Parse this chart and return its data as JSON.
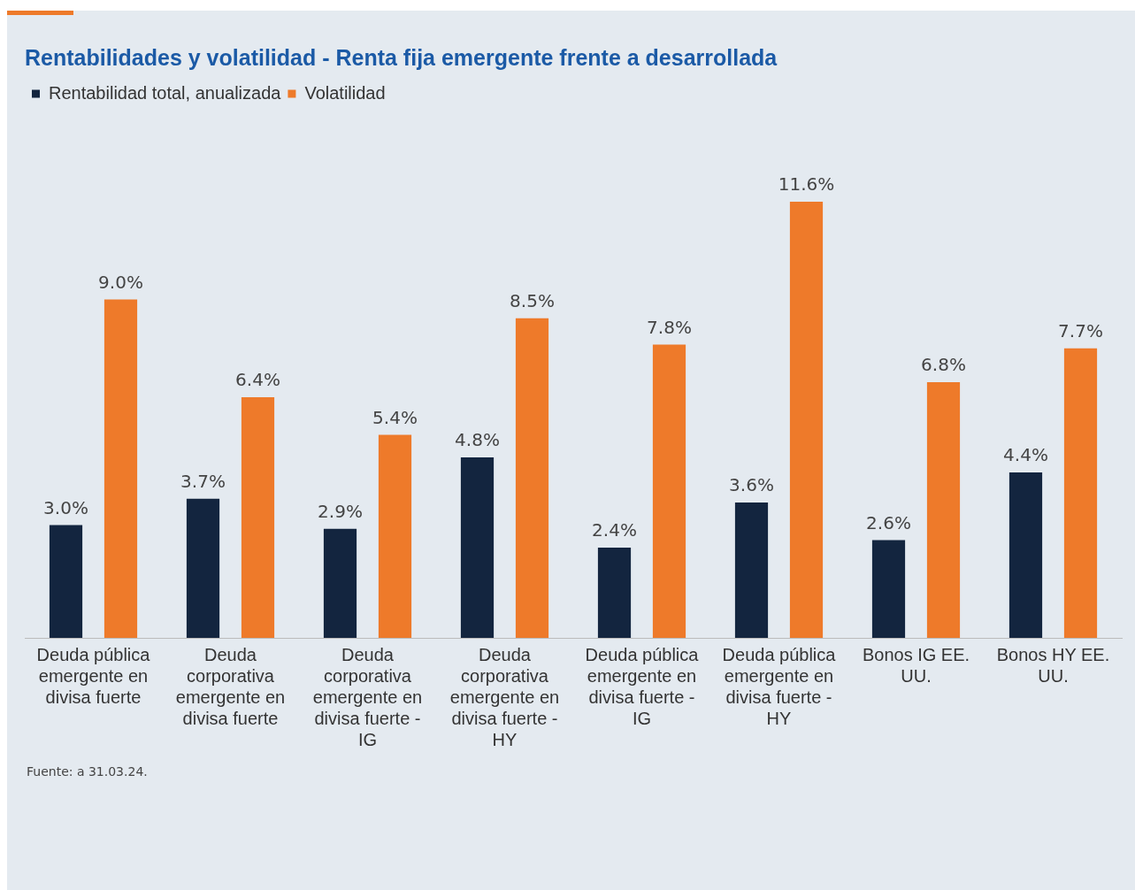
{
  "chart_data": {
    "type": "bar",
    "title": "Rentabilidades y volatilidad - Renta fija emergente frente a desarrollada",
    "categories": [
      "Deuda pública emergente en divisa fuerte",
      "Deuda corporativa emergente en divisa fuerte",
      "Deuda corporativa emergente en divisa fuerte - IG",
      "Deuda corporativa emergente en divisa fuerte - HY",
      "Deuda pública emergente en divisa fuerte - IG",
      "Deuda pública emergente en divisa fuerte - HY",
      "Bonos IG EE. UU.",
      "Bonos HY EE. UU."
    ],
    "series": [
      {
        "name": "Rentabilidad total, anualizada",
        "color": "#13253f",
        "values": [
          3.0,
          3.7,
          2.9,
          4.8,
          2.4,
          3.6,
          2.6,
          4.4
        ],
        "value_labels": [
          "3.0%",
          "3.7%",
          "2.9%",
          "4.8%",
          "2.4%",
          "3.6%",
          "2.6%",
          "4.4%"
        ]
      },
      {
        "name": "Volatilidad",
        "color": "#ee7a2a",
        "values": [
          9.0,
          6.4,
          5.4,
          8.5,
          7.8,
          11.6,
          6.8,
          7.7
        ],
        "value_labels": [
          "9.0%",
          "6.4%",
          "5.4%",
          "8.5%",
          "7.8%",
          "11.6%",
          "6.8%",
          "7.7%"
        ]
      }
    ],
    "legend": "top left",
    "grid": false,
    "tick_labels": "x",
    "annotations": [
      "Fuente: a 31.03.24."
    ]
  }
}
